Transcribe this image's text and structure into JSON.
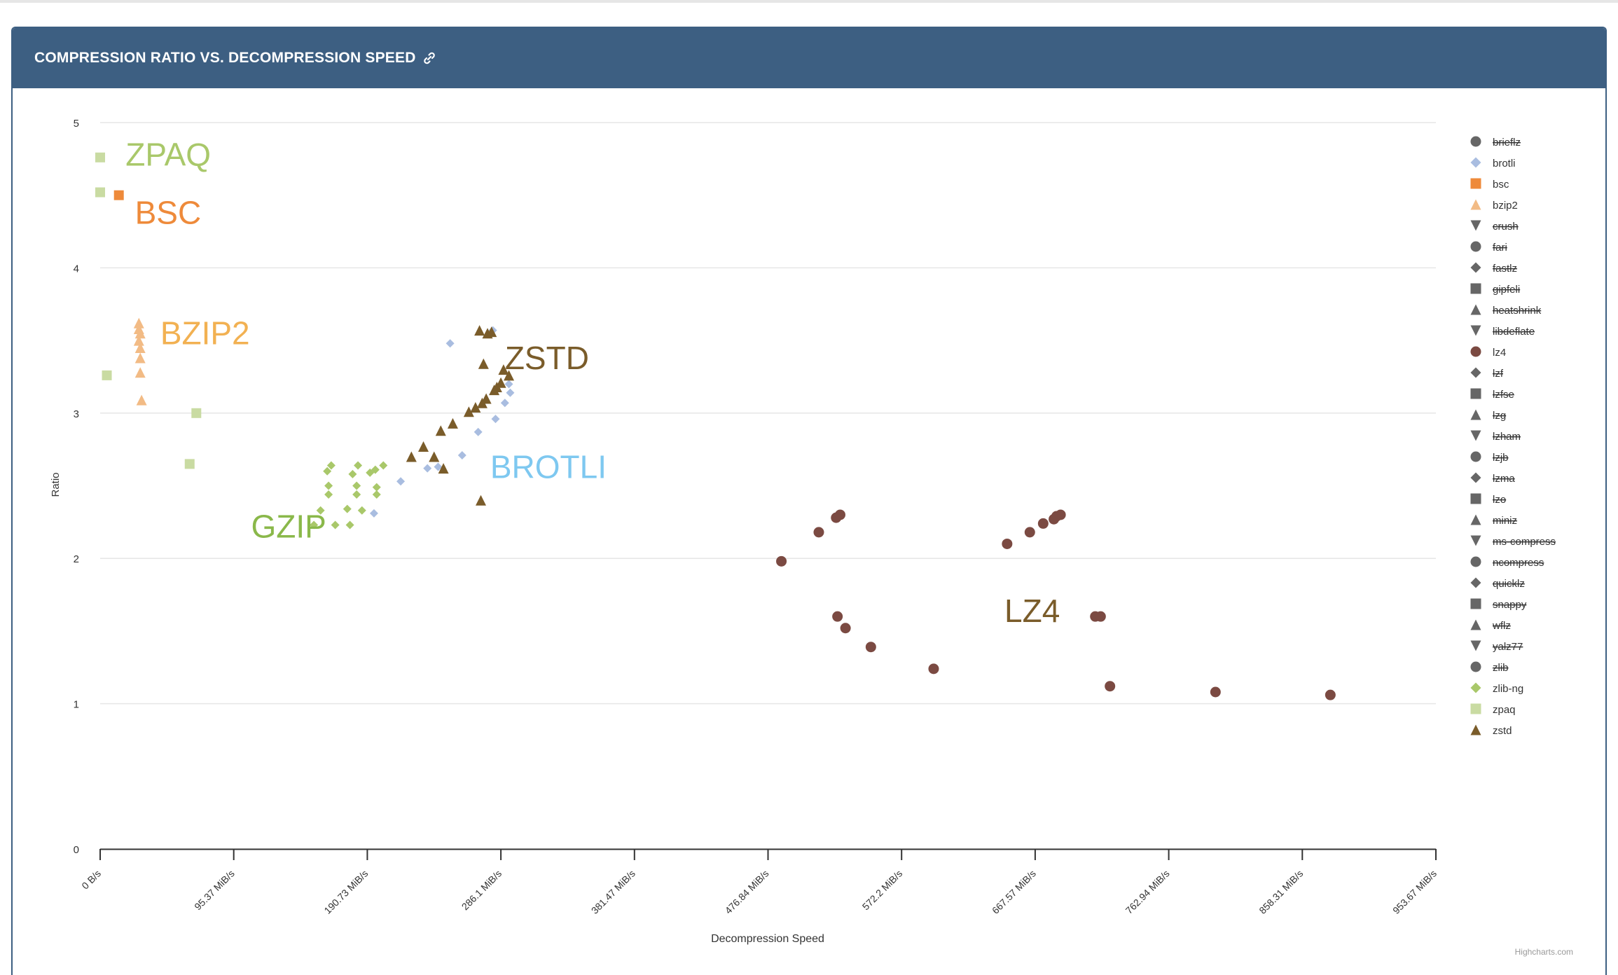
{
  "header": {
    "title": "COMPRESSION RATIO VS. DECOMPRESSION SPEED",
    "link_icon": "link-icon"
  },
  "credits": "Highcharts.com",
  "colors": {
    "header_bg": "#3d5f82",
    "lz4": "#7b4a42",
    "zstd": "#7a5c2a",
    "brotli": "#a9bde0",
    "zlib_ng": "#a9c86a",
    "zpaq": "#c9dba2",
    "bsc": "#ee8a3a",
    "bzip2": "#f2bb85",
    "hidden": "#666666"
  },
  "chart_data": {
    "type": "scatter",
    "xlabel": "Decompression Speed",
    "ylabel": "Ratio",
    "xlim": [
      0,
      1000000000
    ],
    "ylim": [
      0,
      5
    ],
    "x_tick_labels": [
      "0 B/s",
      "95.37 MiB/s",
      "190.73 MiB/s",
      "286.1 MiB/s",
      "381.47 MiB/s",
      "476.84 MiB/s",
      "572.2 MiB/s",
      "667.57 MiB/s",
      "762.94 MiB/s",
      "858.31 MiB/s",
      "953.67 MiB/s"
    ],
    "y_ticks": [
      0,
      1,
      2,
      3,
      4,
      5
    ],
    "grid": "horizontal",
    "legend_position": "right",
    "legend": [
      {
        "name": "brieflz",
        "symbol": "circle",
        "visible": false
      },
      {
        "name": "brotli",
        "symbol": "diamond",
        "visible": true,
        "color": "#a9bde0"
      },
      {
        "name": "bsc",
        "symbol": "square",
        "visible": true,
        "color": "#ee8a3a"
      },
      {
        "name": "bzip2",
        "symbol": "triangle",
        "visible": true,
        "color": "#f2bb85"
      },
      {
        "name": "crush",
        "symbol": "triangle-down",
        "visible": false
      },
      {
        "name": "fari",
        "symbol": "circle",
        "visible": false
      },
      {
        "name": "fastlz",
        "symbol": "diamond",
        "visible": false
      },
      {
        "name": "gipfeli",
        "symbol": "square",
        "visible": false
      },
      {
        "name": "heatshrink",
        "symbol": "triangle",
        "visible": false
      },
      {
        "name": "libdeflate",
        "symbol": "triangle-down",
        "visible": false
      },
      {
        "name": "lz4",
        "symbol": "circle",
        "visible": true,
        "color": "#7b4a42"
      },
      {
        "name": "lzf",
        "symbol": "diamond",
        "visible": false
      },
      {
        "name": "lzfse",
        "symbol": "square",
        "visible": false
      },
      {
        "name": "lzg",
        "symbol": "triangle",
        "visible": false
      },
      {
        "name": "lzham",
        "symbol": "triangle-down",
        "visible": false
      },
      {
        "name": "lzjb",
        "symbol": "circle",
        "visible": false
      },
      {
        "name": "lzma",
        "symbol": "diamond",
        "visible": false
      },
      {
        "name": "lzo",
        "symbol": "square",
        "visible": false
      },
      {
        "name": "miniz",
        "symbol": "triangle",
        "visible": false
      },
      {
        "name": "ms-compress",
        "symbol": "triangle-down",
        "visible": false
      },
      {
        "name": "ncompress",
        "symbol": "circle",
        "visible": false
      },
      {
        "name": "quicklz",
        "symbol": "diamond",
        "visible": false
      },
      {
        "name": "snappy",
        "symbol": "square",
        "visible": false
      },
      {
        "name": "wflz",
        "symbol": "triangle",
        "visible": false
      },
      {
        "name": "yalz77",
        "symbol": "triangle-down",
        "visible": false
      },
      {
        "name": "zlib",
        "symbol": "circle",
        "visible": false
      },
      {
        "name": "zlib-ng",
        "symbol": "diamond",
        "visible": true,
        "color": "#a9c86a"
      },
      {
        "name": "zpaq",
        "symbol": "square",
        "visible": true,
        "color": "#c9dba2"
      },
      {
        "name": "zstd",
        "symbol": "triangle",
        "visible": true,
        "color": "#7a5c2a"
      }
    ],
    "annotations": [
      {
        "text": "ZPAQ",
        "x": 19000000,
        "y": 4.78,
        "color": "#a9c86a"
      },
      {
        "text": "BSC",
        "x": 26000000,
        "y": 4.38,
        "color": "#ee8a3a"
      },
      {
        "text": "BZIP2",
        "x": 45000000,
        "y": 3.55,
        "color": "#f2b152"
      },
      {
        "text": "ZSTD",
        "x": 303000000,
        "y": 3.38,
        "color": "#7a5c2a"
      },
      {
        "text": "BROTLI",
        "x": 292000000,
        "y": 2.63,
        "color": "#7ec8f0"
      },
      {
        "text": "GZIP",
        "x": 113000000,
        "y": 2.22,
        "color": "#8ab84a"
      },
      {
        "text": "LZ4",
        "x": 677000000,
        "y": 1.64,
        "color": "#7a5c2a"
      }
    ],
    "series": [
      {
        "name": "zpaq",
        "symbol": "square",
        "color": "#c9dba2",
        "size": 14,
        "points": [
          [
            0,
            4.76
          ],
          [
            0,
            4.52
          ],
          [
            5000000,
            3.26
          ],
          [
            72000000,
            3.0
          ],
          [
            67000000,
            2.65
          ]
        ]
      },
      {
        "name": "bsc",
        "symbol": "square",
        "color": "#ee8a3a",
        "size": 14,
        "points": [
          [
            14000000,
            4.5
          ]
        ]
      },
      {
        "name": "bzip2",
        "symbol": "triangle",
        "color": "#f2bb85",
        "size": 15,
        "points": [
          [
            29000000,
            3.62
          ],
          [
            29000000,
            3.58
          ],
          [
            30000000,
            3.55
          ],
          [
            29000000,
            3.5
          ],
          [
            30000000,
            3.45
          ],
          [
            30000000,
            3.38
          ],
          [
            30000000,
            3.28
          ],
          [
            31000000,
            3.09
          ]
        ]
      },
      {
        "name": "brotli",
        "symbol": "diamond",
        "color": "#a9bde0",
        "size": 12,
        "points": [
          [
            262000000,
            3.48
          ],
          [
            294000000,
            3.57
          ],
          [
            306000000,
            3.2
          ],
          [
            307000000,
            3.14
          ],
          [
            303000000,
            3.07
          ],
          [
            296000000,
            2.96
          ],
          [
            283000000,
            2.87
          ],
          [
            271000000,
            2.71
          ],
          [
            253000000,
            2.63
          ],
          [
            245000000,
            2.62
          ],
          [
            225000000,
            2.53
          ],
          [
            205000000,
            2.31
          ]
        ]
      },
      {
        "name": "zstd",
        "symbol": "triangle",
        "color": "#7a5c2a",
        "size": 15,
        "points": [
          [
            284000000,
            3.57
          ],
          [
            290000000,
            3.55
          ],
          [
            293000000,
            3.56
          ],
          [
            287000000,
            3.34
          ],
          [
            302000000,
            3.3
          ],
          [
            306000000,
            3.26
          ],
          [
            300000000,
            3.21
          ],
          [
            295000000,
            3.16
          ],
          [
            297000000,
            3.18
          ],
          [
            289000000,
            3.1
          ],
          [
            286000000,
            3.07
          ],
          [
            281000000,
            3.04
          ],
          [
            276000000,
            3.01
          ],
          [
            264000000,
            2.93
          ],
          [
            255000000,
            2.88
          ],
          [
            242000000,
            2.77
          ],
          [
            233000000,
            2.7
          ],
          [
            250000000,
            2.7
          ],
          [
            257000000,
            2.62
          ],
          [
            285000000,
            2.4
          ]
        ]
      },
      {
        "name": "zlib-ng",
        "symbol": "diamond",
        "color": "#a9c86a",
        "size": 12,
        "points": [
          [
            173000000,
            2.64
          ],
          [
            170000000,
            2.6
          ],
          [
            193000000,
            2.64
          ],
          [
            212000000,
            2.64
          ],
          [
            206000000,
            2.61
          ],
          [
            189000000,
            2.58
          ],
          [
            202000000,
            2.59
          ],
          [
            171000000,
            2.5
          ],
          [
            192000000,
            2.5
          ],
          [
            207000000,
            2.49
          ],
          [
            171000000,
            2.44
          ],
          [
            192000000,
            2.44
          ],
          [
            207000000,
            2.44
          ],
          [
            165000000,
            2.33
          ],
          [
            185000000,
            2.34
          ],
          [
            196000000,
            2.33
          ],
          [
            160000000,
            2.23
          ],
          [
            176000000,
            2.23
          ],
          [
            187000000,
            2.23
          ]
        ]
      },
      {
        "name": "lz4",
        "symbol": "circle",
        "color": "#7b4a42",
        "size": 15,
        "points": [
          [
            510000000,
            1.98
          ],
          [
            538000000,
            2.18
          ],
          [
            551000000,
            2.28
          ],
          [
            554000000,
            2.3
          ],
          [
            552000000,
            1.6
          ],
          [
            558000000,
            1.52
          ],
          [
            577000000,
            1.39
          ],
          [
            624000000,
            1.24
          ],
          [
            679000000,
            2.1
          ],
          [
            696000000,
            2.18
          ],
          [
            706000000,
            2.24
          ],
          [
            714000000,
            2.27
          ],
          [
            716000000,
            2.29
          ],
          [
            719000000,
            2.3
          ],
          [
            745000000,
            1.6
          ],
          [
            749000000,
            1.6
          ],
          [
            756000000,
            1.12
          ],
          [
            835000000,
            1.08
          ],
          [
            921000000,
            1.06
          ]
        ]
      }
    ]
  }
}
